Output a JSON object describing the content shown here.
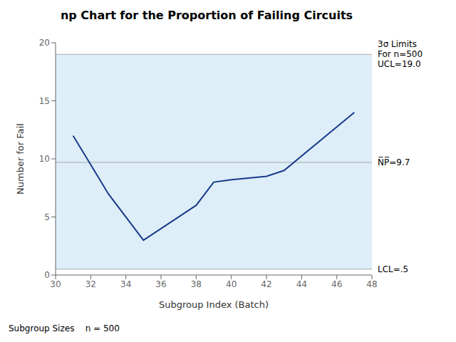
{
  "chart_data": {
    "type": "line",
    "title": "np Chart for the Proportion of Failing Circuits",
    "xlabel": "Subgroup Index (Batch)",
    "ylabel": "Number for Fail",
    "x": [
      31,
      33,
      35,
      38,
      39,
      40,
      42,
      43,
      47
    ],
    "values": [
      12,
      7,
      3,
      6,
      8,
      8.2,
      8.5,
      9,
      14
    ],
    "color": "#1a3a8a",
    "xlim": [
      30,
      48
    ],
    "ylim": [
      0,
      20
    ],
    "xticks": [
      30,
      32,
      34,
      36,
      38,
      40,
      42,
      44,
      46,
      48
    ],
    "yticks": [
      0,
      5,
      10,
      15,
      20
    ],
    "grid": false,
    "reference_lines": [
      {
        "value": 19.0,
        "color": "#aaaaaa",
        "label": "3σ Limits\nFor n=500\nUCL=19.0"
      },
      {
        "value": 9.7,
        "color": "#aaaaaa",
        "label": "N̅P̅=9.7"
      },
      {
        "value": 0.5,
        "color": "#aaaaaa",
        "label": "LCL=.5"
      }
    ],
    "band": {
      "from": 0.5,
      "to": 19.0,
      "color": "#ddeef8"
    },
    "footnote": "Subgroup Sizes    n = 500"
  }
}
